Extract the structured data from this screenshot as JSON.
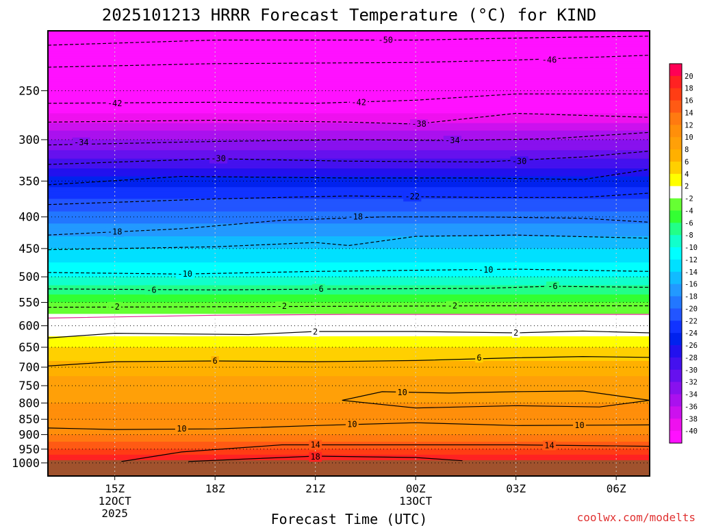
{
  "chart_data": {
    "type": "heatmap",
    "title": "2025101213 HRRR Forecast Temperature (°C) for KIND",
    "xlabel": "Forecast Time (UTC)",
    "ylabel": "",
    "credit": "coolwx.com/modelts",
    "x_range_hours": [
      13,
      31
    ],
    "y_range_hpa": [
      200,
      1050
    ],
    "y_ticks": [
      250,
      300,
      350,
      400,
      450,
      500,
      550,
      600,
      650,
      700,
      750,
      800,
      850,
      900,
      950,
      1000
    ],
    "x_ticks": [
      {
        "hour": 15,
        "label": "15Z",
        "sub1": "12OCT",
        "sub2": "2025"
      },
      {
        "hour": 18,
        "label": "18Z",
        "sub1": "",
        "sub2": ""
      },
      {
        "hour": 21,
        "label": "21Z",
        "sub1": "",
        "sub2": ""
      },
      {
        "hour": 24,
        "label": "00Z",
        "sub1": "13OCT",
        "sub2": ""
      },
      {
        "hour": 27,
        "label": "03Z",
        "sub1": "",
        "sub2": ""
      },
      {
        "hour": 30,
        "label": "06Z",
        "sub1": "",
        "sub2": ""
      }
    ],
    "colorbar": {
      "ticks": [
        "20",
        "18",
        "16",
        "14",
        "12",
        "10",
        "8",
        "6",
        "4",
        "2",
        "-2",
        "-4",
        "-6",
        "-8",
        "-10",
        "-12",
        "-14",
        "-16",
        "-18",
        "-20",
        "-22",
        "-24",
        "-26",
        "-28",
        "-30",
        "-32",
        "-34",
        "-36",
        "-38",
        "-40"
      ],
      "colors": [
        "#ff0055",
        "#ff2222",
        "#ff3d14",
        "#ff5a14",
        "#ff7a10",
        "#ff8f0a",
        "#ffa008",
        "#ffb000",
        "#ffd000",
        "#ffff00",
        "#ffffff",
        "#66ff33",
        "#33ff33",
        "#22ff88",
        "#11ffcc",
        "#00ffff",
        "#00e0ff",
        "#11bbff",
        "#2299ff",
        "#2277ff",
        "#2255ff",
        "#1133ff",
        "#0022ee",
        "#2211ee",
        "#4411ee",
        "#6611ee",
        "#8811ee",
        "#aa11ee",
        "#cc11ee",
        "#ee11ee",
        "#ff11ff"
      ]
    },
    "temperature_profile": [
      {
        "p": 200,
        "t": -54
      },
      {
        "p": 250,
        "t": -45
      },
      {
        "p": 300,
        "t": -34
      },
      {
        "p": 350,
        "t": -25
      },
      {
        "p": 400,
        "t": -19
      },
      {
        "p": 450,
        "t": -14
      },
      {
        "p": 500,
        "t": -10
      },
      {
        "p": 550,
        "t": -4
      },
      {
        "p": 600,
        "t": 0
      },
      {
        "p": 650,
        "t": 4
      },
      {
        "p": 700,
        "t": 7
      },
      {
        "p": 750,
        "t": 9
      },
      {
        "p": 800,
        "t": 10
      },
      {
        "p": 850,
        "t": 10
      },
      {
        "p": 900,
        "t": 12
      },
      {
        "p": 950,
        "t": 16
      },
      {
        "p": 990,
        "t": 20
      }
    ],
    "surface_pressure_hpa": 990,
    "contours": [
      {
        "value": -50,
        "label": "-50",
        "dashed": true,
        "pts": [
          [
            13,
            211
          ],
          [
            18,
            207
          ],
          [
            24,
            207
          ],
          [
            28,
            205
          ],
          [
            31,
            204
          ]
        ],
        "labels_at": [
          [
            23.1,
            207
          ]
        ]
      },
      {
        "value": -46,
        "label": "-46",
        "dashed": true,
        "pts": [
          [
            13,
            229
          ],
          [
            18,
            226
          ],
          [
            24,
            225
          ],
          [
            27,
            223
          ],
          [
            31,
            219
          ]
        ],
        "labels_at": [
          [
            28.0,
            223
          ]
        ]
      },
      {
        "value": -42,
        "label": "-42",
        "dashed": true,
        "pts": [
          [
            13,
            262
          ],
          [
            18,
            261
          ],
          [
            21,
            262
          ],
          [
            24,
            259
          ],
          [
            27,
            253
          ],
          [
            31,
            253
          ]
        ],
        "labels_at": [
          [
            15,
            262
          ],
          [
            22.3,
            261
          ]
        ]
      },
      {
        "value": -38,
        "label": "-38",
        "dashed": true,
        "pts": [
          [
            13,
            281
          ],
          [
            18,
            279
          ],
          [
            22,
            281
          ],
          [
            24,
            283
          ],
          [
            27,
            272
          ],
          [
            31,
            276
          ]
        ],
        "labels_at": [
          [
            24.1,
            283
          ]
        ]
      },
      {
        "value": -34,
        "label": "-34",
        "dashed": true,
        "pts": [
          [
            13,
            306
          ],
          [
            18,
            302
          ],
          [
            22,
            300
          ],
          [
            25,
            301
          ],
          [
            28,
            299
          ],
          [
            31,
            292
          ]
        ],
        "labels_at": [
          [
            14,
            303
          ],
          [
            25.1,
            301
          ]
        ]
      },
      {
        "value": -30,
        "label": "-30",
        "dashed": true,
        "pts": [
          [
            13,
            329
          ],
          [
            18,
            322
          ],
          [
            22,
            325
          ],
          [
            26,
            326
          ],
          [
            29,
            320
          ],
          [
            31,
            313
          ]
        ],
        "labels_at": [
          [
            18.1,
            322
          ],
          [
            27.1,
            325
          ]
        ]
      },
      {
        "value": -26,
        "label": "",
        "dashed": true,
        "pts": [
          [
            13,
            355
          ],
          [
            17,
            344
          ],
          [
            22,
            346
          ],
          [
            26,
            346
          ],
          [
            29,
            348
          ],
          [
            31,
            335
          ]
        ],
        "labels_at": []
      },
      {
        "value": -22,
        "label": "-22",
        "dashed": true,
        "pts": [
          [
            13,
            382
          ],
          [
            18,
            374
          ],
          [
            22,
            370
          ],
          [
            26,
            372
          ],
          [
            29,
            372
          ],
          [
            31,
            366
          ]
        ],
        "labels_at": [
          [
            23.9,
            371
          ]
        ]
      },
      {
        "value": -18,
        "label": "-18",
        "dashed": true,
        "pts": [
          [
            13,
            428
          ],
          [
            17,
            418
          ],
          [
            20,
            405
          ],
          [
            23,
            400
          ],
          [
            26,
            400
          ],
          [
            29,
            402
          ],
          [
            31,
            408
          ]
        ],
        "labels_at": [
          [
            15,
            423
          ],
          [
            22.2,
            400
          ]
        ]
      },
      {
        "value": -14,
        "label": "",
        "dashed": true,
        "pts": [
          [
            13,
            452
          ],
          [
            18,
            447
          ],
          [
            21,
            440
          ],
          [
            22,
            445
          ],
          [
            24,
            430
          ],
          [
            27,
            428
          ],
          [
            31,
            433
          ]
        ],
        "labels_at": []
      },
      {
        "value": -10,
        "label": "-10",
        "dashed": true,
        "pts": [
          [
            13,
            492
          ],
          [
            17,
            495
          ],
          [
            21,
            490
          ],
          [
            24,
            488
          ],
          [
            27,
            486
          ],
          [
            31,
            490
          ]
        ],
        "labels_at": [
          [
            17.1,
            495
          ],
          [
            26.1,
            487
          ]
        ]
      },
      {
        "value": -6,
        "label": "-6",
        "dashed": true,
        "pts": [
          [
            13,
            523
          ],
          [
            18,
            525
          ],
          [
            22,
            523
          ],
          [
            26,
            522
          ],
          [
            28,
            518
          ],
          [
            31,
            520
          ]
        ],
        "labels_at": [
          [
            16.1,
            525
          ],
          [
            21.1,
            523
          ],
          [
            28.1,
            518
          ]
        ]
      },
      {
        "value": -2,
        "label": "-2",
        "dashed": true,
        "pts": [
          [
            13,
            560
          ],
          [
            18,
            559
          ],
          [
            22,
            558
          ],
          [
            26,
            557
          ],
          [
            31,
            557
          ]
        ],
        "labels_at": [
          [
            15,
            559
          ],
          [
            20,
            558
          ],
          [
            25.1,
            557
          ]
        ]
      },
      {
        "value": 0,
        "label": "",
        "dashed": false,
        "color": "#e0208a",
        "pts": [
          [
            13,
            583
          ],
          [
            18,
            577
          ],
          [
            22,
            575
          ],
          [
            26,
            575
          ],
          [
            31,
            575
          ]
        ],
        "labels_at": []
      },
      {
        "value": 2,
        "label": "2",
        "dashed": false,
        "pts": [
          [
            13,
            628
          ],
          [
            15,
            617
          ],
          [
            19,
            620
          ],
          [
            21,
            613
          ],
          [
            24,
            613
          ],
          [
            27,
            616
          ],
          [
            29,
            612
          ],
          [
            31,
            616
          ]
        ],
        "labels_at": [
          [
            21,
            614
          ],
          [
            27,
            616
          ]
        ]
      },
      {
        "value": 6,
        "label": "6",
        "dashed": false,
        "pts": [
          [
            13,
            697
          ],
          [
            15,
            686
          ],
          [
            18,
            684
          ],
          [
            21,
            686
          ],
          [
            24,
            683
          ],
          [
            27,
            676
          ],
          [
            29,
            673
          ],
          [
            31,
            675
          ]
        ],
        "labels_at": [
          [
            18,
            684
          ],
          [
            25.9,
            676
          ]
        ]
      },
      {
        "value": 10,
        "label": "10",
        "dashed": false,
        "pts": [
          [
            21.8,
            792
          ],
          [
            23,
            767
          ],
          [
            25,
            771
          ],
          [
            27,
            767
          ],
          [
            29,
            765
          ],
          [
            31,
            792
          ],
          [
            29.5,
            812
          ],
          [
            27,
            808
          ],
          [
            24,
            815
          ],
          [
            21.8,
            792
          ]
        ],
        "labels_at": [
          [
            23.6,
            769
          ]
        ]
      },
      {
        "value": 10,
        "label": "10",
        "dashed": false,
        "pts": [
          [
            13,
            878
          ],
          [
            15,
            883
          ],
          [
            18,
            881
          ],
          [
            21,
            870
          ],
          [
            24,
            861
          ],
          [
            27,
            870
          ],
          [
            31,
            868
          ]
        ],
        "labels_at": [
          [
            17,
            881
          ],
          [
            22.1,
            866
          ],
          [
            28.9,
            869
          ]
        ]
      },
      {
        "value": 14,
        "label": "14",
        "dashed": false,
        "pts": [
          [
            15.2,
            995
          ],
          [
            17,
            960
          ],
          [
            20,
            935
          ],
          [
            24,
            935
          ],
          [
            27,
            935
          ],
          [
            31,
            940
          ]
        ],
        "labels_at": [
          [
            21,
            935
          ],
          [
            28,
            937
          ]
        ]
      },
      {
        "value": 18,
        "label": "18",
        "dashed": false,
        "pts": [
          [
            17.2,
            995
          ],
          [
            19,
            985
          ],
          [
            21,
            975
          ],
          [
            24,
            980
          ],
          [
            25.4,
            992
          ]
        ],
        "labels_at": [
          [
            21,
            978
          ]
        ]
      }
    ]
  }
}
